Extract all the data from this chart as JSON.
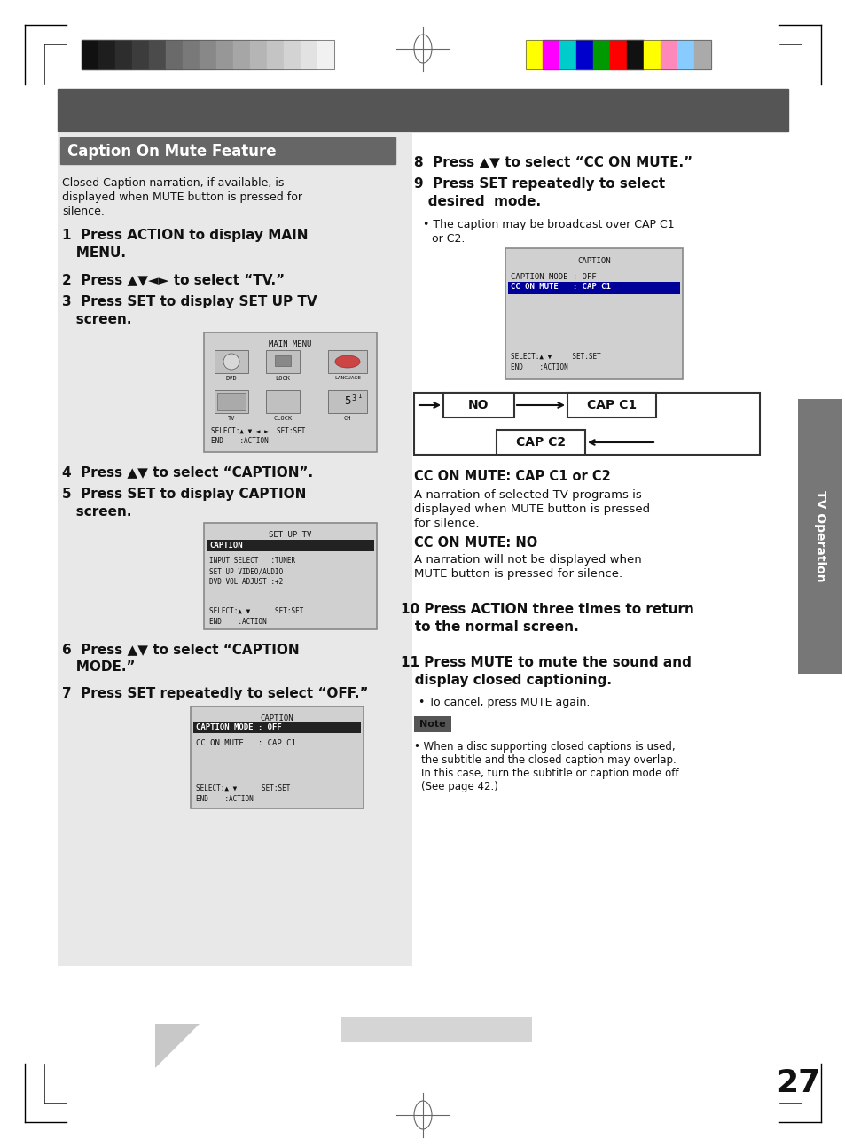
{
  "page_number": "27",
  "bg_color": "#ffffff",
  "header_strip_color": "#666666",
  "gray_section_color": "#e0e0e0",
  "title_bg_color": "#666666",
  "title_text": "Caption On Mute Feature",
  "title_text_color": "#ffffff",
  "sidebar_color": "#888888",
  "sidebar_text": "TV Operation",
  "screen_bg": "#d8d8d8",
  "screen_border": "#888888",
  "highlight_dark": "#222222",
  "highlight_blue": "#000099",
  "gray_shades": [
    "#111111",
    "#1e1e1e",
    "#2d2d2d",
    "#3c3c3c",
    "#4b4b4b",
    "#6a6a6a",
    "#797979",
    "#888888",
    "#979797",
    "#a6a6a6",
    "#b5b5b5",
    "#c4c4c4",
    "#d3d3d3",
    "#e2e2e2",
    "#f1f1f1"
  ],
  "color_chips": [
    "#ffff00",
    "#ff00ff",
    "#00cccc",
    "#0000cc",
    "#009900",
    "#ff0000",
    "#111111",
    "#ffff00",
    "#ff88bb",
    "#88ccff",
    "#aaaaaa"
  ]
}
